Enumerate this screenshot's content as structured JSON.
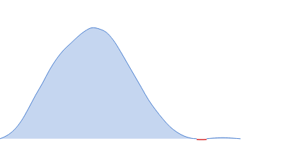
{
  "chart_data": {
    "type": "area",
    "xlim": [
      0,
      400
    ],
    "ylim": [
      -0.02,
      1.25
    ],
    "grid": false,
    "tick_labels": false,
    "series": [
      {
        "type": "area",
        "color": "#4a7fd0",
        "x": [
          0,
          10,
          20,
          30,
          40,
          50,
          60,
          70,
          80,
          90,
          100,
          110,
          120,
          130,
          140,
          150,
          160,
          170,
          180,
          190,
          200,
          210,
          220,
          230,
          240,
          250,
          260,
          270,
          278
        ],
        "values": [
          0.0,
          0.03,
          0.08,
          0.16,
          0.27,
          0.39,
          0.5,
          0.62,
          0.72,
          0.8,
          0.86,
          0.92,
          0.97,
          1.0,
          0.99,
          0.96,
          0.89,
          0.79,
          0.68,
          0.57,
          0.46,
          0.35,
          0.26,
          0.18,
          0.11,
          0.06,
          0.025,
          0.005,
          0.0
        ]
      },
      {
        "type": "line",
        "color": "#d62728",
        "x": [
          278,
          285,
          292
        ],
        "values": [
          -0.005,
          -0.008,
          -0.005
        ]
      },
      {
        "type": "area",
        "color": "#4a7fd0",
        "x": [
          292,
          300,
          315,
          330,
          340
        ],
        "values": [
          0.0,
          0.005,
          0.01,
          0.005,
          0.0
        ]
      }
    ]
  }
}
